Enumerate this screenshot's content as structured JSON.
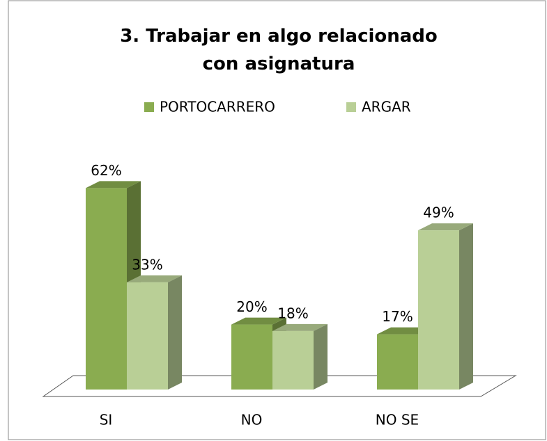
{
  "chart_data": {
    "type": "bar3d",
    "title": "3. Trabajar  en algo relacionado con asignatura",
    "categories": [
      "SI",
      "NO",
      "NO SE"
    ],
    "series": [
      {
        "name": "PORTOCARRERO",
        "color": "#8aac50",
        "values": [
          62,
          20,
          17
        ],
        "value_labels": [
          "62%",
          "20%",
          "17%"
        ]
      },
      {
        "name": "ARGAR",
        "color": "#b9cf96",
        "values": [
          33,
          18,
          49
        ],
        "value_labels": [
          "33%",
          "18%",
          "49%"
        ]
      }
    ],
    "ylim": [
      0,
      70
    ],
    "legend": "top"
  }
}
